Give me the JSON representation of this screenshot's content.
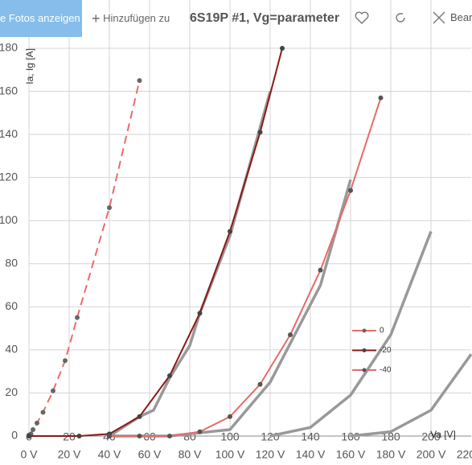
{
  "toolbar": {
    "button": "e Fotos anzeigen",
    "add": "Hinzufügen zu",
    "edit": "Bearb"
  },
  "chart_data": {
    "type": "line",
    "title": "6S19P #1, Vg=parameter",
    "y_label": "Ia, Ig [A]",
    "x_label": "Va [V]",
    "xlim": [
      0,
      220
    ],
    "ylim": [
      0,
      180
    ],
    "xticks": [
      0,
      20,
      40,
      60,
      80,
      100,
      120,
      140,
      160,
      180,
      200
    ],
    "x2ticks": [
      {
        "value": 0,
        "label": "0 V"
      },
      {
        "value": 20,
        "label": "20 V"
      },
      {
        "value": 40,
        "label": "40 V"
      },
      {
        "value": 60,
        "label": "60 V"
      },
      {
        "value": 80,
        "label": "80 V"
      },
      {
        "value": 100,
        "label": "100 V"
      },
      {
        "value": 120,
        "label": "120 V"
      },
      {
        "value": 140,
        "label": "140 V"
      },
      {
        "value": 160,
        "label": "160 V"
      },
      {
        "value": 180,
        "label": "180 V"
      },
      {
        "value": 200,
        "label": "200 V"
      },
      {
        "value": 220,
        "label": "220 V"
      }
    ],
    "yticks": [
      0,
      20,
      40,
      60,
      80,
      100,
      120,
      140,
      160,
      180
    ],
    "grid": true,
    "legend": "right",
    "series": [
      {
        "color": "#999999",
        "x": [
          40,
          55,
          62,
          70,
          80,
          85,
          100,
          120
        ],
        "values": [
          0,
          9,
          12,
          27,
          42,
          57,
          93,
          160
        ]
      },
      {
        "color": "#999999",
        "x": [
          40,
          70,
          100,
          120,
          145,
          160
        ],
        "values": [
          0,
          0,
          3,
          25,
          70,
          119
        ]
      },
      {
        "color": "#999999",
        "x": [
          120,
          140,
          160,
          180,
          200
        ],
        "values": [
          0,
          4,
          19,
          47,
          95
        ]
      },
      {
        "color": "#999999",
        "x": [
          160,
          180,
          200,
          220
        ],
        "values": [
          0,
          2,
          12,
          38
        ]
      },
      {
        "name": "0",
        "color": "#ec6b6b",
        "dashed": true,
        "marker": "#666666",
        "x": [
          0,
          1,
          2,
          4,
          7,
          12,
          18,
          24,
          40,
          55
        ],
        "values": [
          0,
          1,
          3,
          6,
          11,
          21,
          35,
          55,
          106,
          165
        ]
      },
      {
        "name": "-20",
        "color": "#8b1a1a",
        "marker": "#444444",
        "x": [
          0,
          25,
          40,
          55,
          70,
          85,
          100,
          115,
          126
        ],
        "values": [
          0,
          0,
          1,
          9,
          28,
          57,
          95,
          141,
          180
        ]
      },
      {
        "name": "-40",
        "color": "#e86a6a",
        "marker": "#555555",
        "x": [
          40,
          55,
          70,
          85,
          100,
          115,
          130,
          145,
          160,
          175
        ],
        "values": [
          0,
          0,
          0,
          2,
          9,
          24,
          47,
          77,
          114,
          157
        ]
      }
    ]
  }
}
